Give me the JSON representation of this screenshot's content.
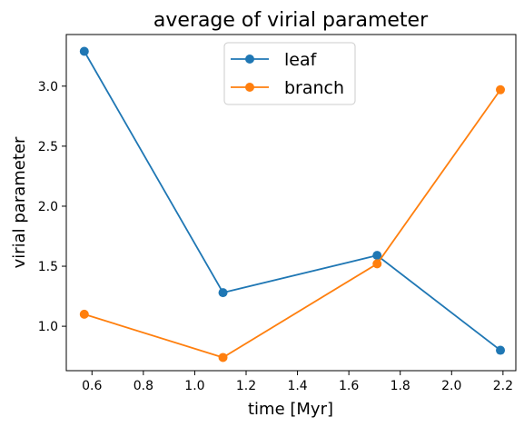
{
  "chart_data": {
    "type": "line",
    "title": "average of virial parameter",
    "xlabel": "time [Myr]",
    "ylabel": "virial parameter",
    "xlim": [
      0.5,
      2.25
    ],
    "ylim": [
      0.63,
      3.43
    ],
    "xticks": [
      0.6,
      0.8,
      1.0,
      1.2,
      1.4,
      1.6,
      1.8,
      2.0,
      2.2
    ],
    "xtick_labels": [
      "0.6",
      "0.8",
      "1.0",
      "1.2",
      "1.4",
      "1.6",
      "1.8",
      "2.0",
      "2.2"
    ],
    "yticks": [
      1.0,
      1.5,
      2.0,
      2.5,
      3.0
    ],
    "ytick_labels": [
      "1.0",
      "1.5",
      "2.0",
      "2.5",
      "3.0"
    ],
    "grid": false,
    "legend_position": "top-center",
    "x": [
      0.57,
      1.11,
      1.71,
      2.19
    ],
    "series": [
      {
        "name": "leaf",
        "color": "#1f77b4",
        "marker": "circle",
        "values": [
          3.29,
          1.28,
          1.59,
          0.8
        ]
      },
      {
        "name": "branch",
        "color": "#ff7f0e",
        "marker": "circle",
        "values": [
          1.1,
          0.74,
          1.52,
          2.97
        ]
      }
    ]
  }
}
